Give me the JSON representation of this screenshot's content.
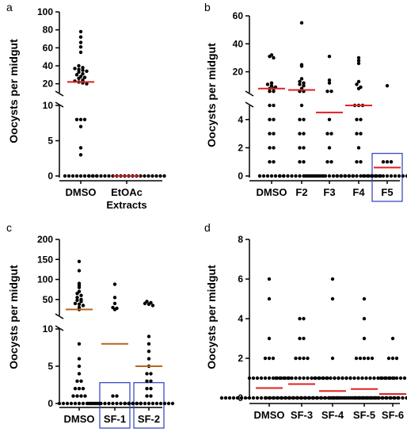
{
  "colors": {
    "dot": "#000000",
    "median": "#e02020",
    "median_c": "#b5651d",
    "box": "#3a4dbf",
    "axis": "#000000"
  },
  "chart_data": [
    {
      "panel": "a",
      "type": "scatter",
      "ylabel": "Oocysts  per midgut",
      "categories": [
        "DMSO",
        "EtOAc Extracts"
      ],
      "broken_axis": {
        "lower": [
          0,
          10
        ],
        "upper": [
          10,
          100
        ]
      },
      "yticks_lower": [
        "0",
        "5",
        "10"
      ],
      "yticks_upper": [
        "20",
        "40",
        "60",
        "80",
        "100"
      ],
      "series": [
        {
          "category": "DMSO",
          "values": [
            78,
            72,
            66,
            61,
            55,
            40,
            38,
            37,
            36,
            35,
            34,
            33,
            31,
            30,
            28,
            27,
            26,
            24,
            23,
            22,
            21,
            20,
            8,
            8,
            8,
            7,
            4,
            3,
            0,
            0,
            0,
            0,
            0,
            0,
            0,
            0,
            0
          ],
          "median": 22
        },
        {
          "category": "EtOAc Extracts",
          "values": [
            0,
            0,
            0,
            0,
            0,
            0,
            0,
            0,
            0,
            0,
            0,
            0,
            0,
            0,
            0,
            0,
            0,
            0,
            0,
            0
          ],
          "median": 0
        }
      ]
    },
    {
      "panel": "b",
      "type": "scatter",
      "ylabel": "Oocysts  per midgut",
      "categories": [
        "DMSO",
        "F2",
        "F3",
        "F4",
        "F5"
      ],
      "broken_axis": {
        "lower": [
          0,
          5
        ],
        "upper": [
          5,
          60
        ]
      },
      "yticks_lower": [
        "0",
        "2",
        "4"
      ],
      "yticks_upper": [
        "20",
        "40",
        "60"
      ],
      "highlight": [
        "F5"
      ],
      "series": [
        {
          "category": "DMSO",
          "values": [
            32,
            31,
            30,
            12,
            11,
            10,
            9,
            8,
            8,
            6,
            6,
            5,
            5,
            4,
            4,
            3,
            3,
            2,
            2,
            1,
            1,
            0,
            0,
            0,
            0,
            0,
            0,
            0
          ],
          "median": 8
        },
        {
          "category": "F2",
          "values": [
            55,
            25,
            24,
            15,
            13,
            12,
            11,
            10,
            8,
            6,
            6,
            5,
            4,
            4,
            3,
            3,
            2,
            2,
            1,
            1,
            0,
            0,
            0,
            0,
            0,
            0,
            0,
            0,
            0,
            0,
            0,
            0
          ],
          "median": 7
        },
        {
          "category": "F3",
          "values": [
            31,
            14,
            12,
            6,
            6,
            4,
            3,
            3,
            2,
            1,
            1,
            0,
            0,
            0,
            0,
            0,
            0,
            0,
            0,
            0,
            0,
            0,
            0,
            0
          ],
          "median": 4.5
        },
        {
          "category": "F4",
          "values": [
            30,
            28,
            26,
            13,
            11,
            9,
            8,
            5,
            5,
            5,
            4,
            4,
            3,
            3,
            2,
            1,
            1,
            0,
            0,
            0,
            0,
            0,
            0,
            0,
            0,
            0,
            0,
            0,
            0
          ],
          "median": 5
        },
        {
          "category": "F5",
          "values": [
            10,
            1,
            1,
            1,
            0,
            0,
            0,
            0,
            0,
            0,
            0,
            0,
            0,
            0,
            0,
            0,
            0
          ],
          "median": 0.6
        }
      ]
    },
    {
      "panel": "c",
      "type": "scatter",
      "ylabel": "Oocysts  per midgut",
      "categories": [
        "DMSO",
        "SF-1",
        "SF-2"
      ],
      "broken_axis": {
        "lower": [
          0,
          10
        ],
        "upper": [
          10,
          200
        ]
      },
      "yticks_lower": [
        "0",
        "5",
        "10"
      ],
      "yticks_upper": [
        "50",
        "100",
        "150",
        "200"
      ],
      "highlight": [
        "SF-1",
        "SF-2"
      ],
      "series": [
        {
          "category": "DMSO",
          "values": [
            145,
            122,
            90,
            85,
            80,
            70,
            65,
            60,
            55,
            50,
            48,
            45,
            40,
            38,
            35,
            30,
            25,
            8,
            6,
            5,
            4,
            3,
            3,
            2,
            2,
            2,
            1,
            1,
            1,
            1,
            0,
            0,
            0,
            0,
            0,
            0,
            0,
            0,
            0,
            0,
            0
          ],
          "median": 25
        },
        {
          "category": "SF-1",
          "values": [
            88,
            55,
            40,
            30,
            28,
            25,
            1,
            1,
            0,
            0,
            0,
            0,
            0,
            0,
            0,
            0,
            0,
            0,
            0,
            0,
            0,
            0
          ],
          "median": 8
        },
        {
          "category": "SF-2",
          "values": [
            45,
            42,
            40,
            38,
            35,
            9,
            8,
            7,
            6,
            5,
            4,
            4,
            3,
            3,
            2,
            2,
            1,
            1,
            0,
            0,
            0,
            0,
            0,
            0,
            0,
            0,
            0,
            0,
            0,
            0,
            0
          ],
          "median": 5
        }
      ]
    },
    {
      "panel": "d",
      "type": "scatter",
      "ylabel": "Oocysts  per midgut",
      "categories": [
        "DMSO",
        "SF-3",
        "SF-4",
        "SF-5",
        "SF-6"
      ],
      "ylim": [
        0,
        8
      ],
      "yticks": [
        "0",
        "2",
        "4",
        "6",
        "8"
      ],
      "series": [
        {
          "category": "DMSO",
          "values": [
            6,
            5,
            3,
            2,
            2,
            2,
            1,
            1,
            1,
            1,
            1,
            1,
            1,
            1,
            1,
            1,
            1,
            0,
            0,
            0,
            0,
            0,
            0,
            0,
            0,
            0,
            0,
            0,
            0,
            0,
            0,
            0,
            0,
            0,
            0,
            0,
            0,
            0,
            0,
            0,
            0,
            0
          ],
          "median": 0.5
        },
        {
          "category": "SF-3",
          "values": [
            4,
            4,
            3,
            3,
            2,
            2,
            2,
            2,
            1,
            1,
            1,
            1,
            1,
            1,
            1,
            1,
            1,
            1,
            1,
            1,
            1,
            1,
            0,
            0,
            0,
            0,
            0,
            0,
            0,
            0,
            0,
            0,
            0,
            0,
            0,
            0,
            0,
            0,
            0,
            0,
            0
          ],
          "median": 0.7
        },
        {
          "category": "SF-4",
          "values": [
            6,
            5,
            2,
            1,
            1,
            1,
            1,
            1,
            1,
            1,
            1,
            1,
            1,
            0,
            0,
            0,
            0,
            0,
            0,
            0,
            0,
            0,
            0,
            0,
            0,
            0,
            0,
            0,
            0,
            0,
            0,
            0,
            0,
            0,
            0,
            0
          ],
          "median": 0.35
        },
        {
          "category": "SF-5",
          "values": [
            5,
            4,
            3,
            2,
            2,
            2,
            2,
            2,
            1,
            1,
            1,
            1,
            1,
            1,
            1,
            1,
            1,
            1,
            1,
            1,
            1,
            1,
            1,
            1,
            0,
            0,
            0,
            0,
            0,
            0,
            0,
            0,
            0,
            0,
            0,
            0,
            0,
            0,
            0,
            0,
            0,
            0
          ],
          "median": 0.45
        },
        {
          "category": "SF-6",
          "values": [
            3,
            2,
            2,
            2,
            1,
            1,
            1,
            1,
            1,
            1,
            1,
            0,
            0,
            0,
            0,
            0,
            0,
            0,
            0,
            0,
            0,
            0,
            0,
            0,
            0,
            0,
            0,
            0,
            0,
            0,
            0
          ],
          "median": 0.2
        }
      ]
    }
  ]
}
